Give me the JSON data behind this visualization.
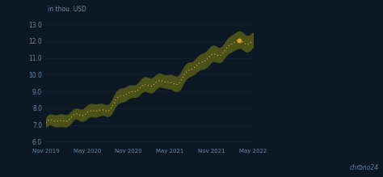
{
  "background_color": "#0c1824",
  "line_color": "#d4b84a",
  "band_color": "#4a5218",
  "grid_color": "#162030",
  "text_color": "#6a8aa8",
  "dot_color": "#d4a030",
  "ylabel_inline": "in thou. USD",
  "ylim": [
    5.8,
    13.4
  ],
  "yticks": [
    6.0,
    7.0,
    8.0,
    9.0,
    10.0,
    11.0,
    12.0,
    13.0
  ],
  "xtick_labels": [
    "Nov 2019",
    "May 2020",
    "Nov 2020",
    "May 2021",
    "Nov 2021",
    "May 2022"
  ],
  "logo_text": "chrono24"
}
